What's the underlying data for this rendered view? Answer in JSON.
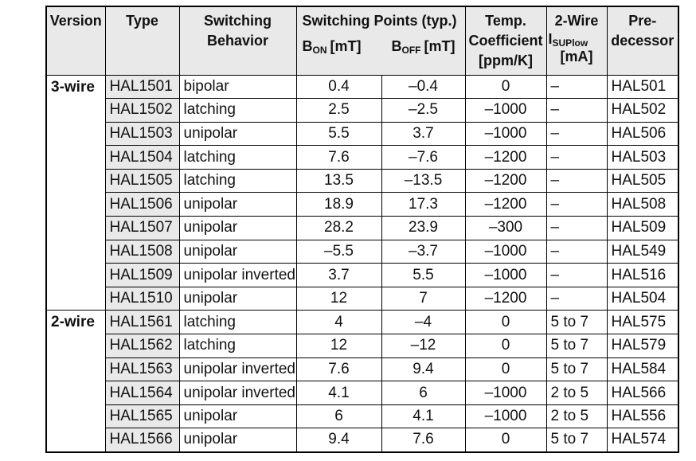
{
  "page": {
    "background": "#ffffff"
  },
  "table": {
    "border_color": "#000000",
    "header_bg": "#e9e9e9",
    "type_column_bg": "#e9e9e9",
    "headers": {
      "version": "Version",
      "type": "Type",
      "behavior_lines": [
        "Switching",
        "Behavior"
      ],
      "switching_points_title": "Switching Points (typ.)",
      "b_on": {
        "base": "B",
        "sub": "ON",
        "unit": "[mT]"
      },
      "b_off": {
        "base": "B",
        "sub": "OFF",
        "unit": "[mT]"
      },
      "temp_lines": [
        "Temp.",
        "Coefficient",
        "[ppm/K]"
      ],
      "two_wire": {
        "line1": "2-Wire",
        "current_base": "I",
        "current_sub": "SUPlow",
        "unit": "[mA]"
      },
      "predecessor_lines": [
        "Pre-",
        "decessor"
      ]
    },
    "groups": [
      {
        "version": "3-wire",
        "rows": [
          {
            "type": "HAL1501",
            "behavior": "bipolar",
            "b_on": "0.4",
            "b_off": "–0.4",
            "temp_coeff": "0",
            "i_sup": "–",
            "predecessor": "HAL501"
          },
          {
            "type": "HAL1502",
            "behavior": "latching",
            "b_on": "2.5",
            "b_off": "–2.5",
            "temp_coeff": "–1000",
            "i_sup": "–",
            "predecessor": "HAL502"
          },
          {
            "type": "HAL1503",
            "behavior": "unipolar",
            "b_on": "5.5",
            "b_off": "3.7",
            "temp_coeff": "–1000",
            "i_sup": "–",
            "predecessor": "HAL506"
          },
          {
            "type": "HAL1504",
            "behavior": "latching",
            "b_on": "7.6",
            "b_off": "–7.6",
            "temp_coeff": "–1200",
            "i_sup": "–",
            "predecessor": "HAL503"
          },
          {
            "type": "HAL1505",
            "behavior": "latching",
            "b_on": "13.5",
            "b_off": "–13.5",
            "temp_coeff": "–1200",
            "i_sup": "–",
            "predecessor": "HAL505"
          },
          {
            "type": "HAL1506",
            "behavior": "unipolar",
            "b_on": "18.9",
            "b_off": "17.3",
            "temp_coeff": "–1200",
            "i_sup": "–",
            "predecessor": "HAL508"
          },
          {
            "type": "HAL1507",
            "behavior": "unipolar",
            "b_on": "28.2",
            "b_off": "23.9",
            "temp_coeff": "–300",
            "i_sup": "–",
            "predecessor": "HAL509"
          },
          {
            "type": "HAL1508",
            "behavior": "unipolar",
            "b_on": "–5.5",
            "b_off": "–3.7",
            "temp_coeff": "–1000",
            "i_sup": "–",
            "predecessor": "HAL549"
          },
          {
            "type": "HAL1509",
            "behavior": "unipolar inverted",
            "b_on": "3.7",
            "b_off": "5.5",
            "temp_coeff": "–1000",
            "i_sup": "–",
            "predecessor": "HAL516"
          },
          {
            "type": "HAL1510",
            "behavior": "unipolar",
            "b_on": "12",
            "b_off": "7",
            "temp_coeff": "–1200",
            "i_sup": "–",
            "predecessor": "HAL504"
          }
        ]
      },
      {
        "version": "2-wire",
        "rows": [
          {
            "type": "HAL1561",
            "behavior": "latching",
            "b_on": "4",
            "b_off": "–4",
            "temp_coeff": "0",
            "i_sup": "5 to 7",
            "predecessor": "HAL575"
          },
          {
            "type": "HAL1562",
            "behavior": "latching",
            "b_on": "12",
            "b_off": "–12",
            "temp_coeff": "0",
            "i_sup": "5 to 7",
            "predecessor": "HAL579"
          },
          {
            "type": "HAL1563",
            "behavior": "unipolar inverted",
            "b_on": "7.6",
            "b_off": "9.4",
            "temp_coeff": "0",
            "i_sup": "5 to 7",
            "predecessor": "HAL584"
          },
          {
            "type": "HAL1564",
            "behavior": "unipolar inverted",
            "b_on": "4.1",
            "b_off": "6",
            "temp_coeff": "–1000",
            "i_sup": "2 to 5",
            "predecessor": "HAL566"
          },
          {
            "type": "HAL1565",
            "behavior": "unipolar",
            "b_on": "6",
            "b_off": "4.1",
            "temp_coeff": "–1000",
            "i_sup": "2 to 5",
            "predecessor": "HAL556"
          },
          {
            "type": "HAL1566",
            "behavior": "unipolar",
            "b_on": "9.4",
            "b_off": "7.6",
            "temp_coeff": "0",
            "i_sup": "5 to 7",
            "predecessor": "HAL574"
          }
        ]
      }
    ]
  }
}
